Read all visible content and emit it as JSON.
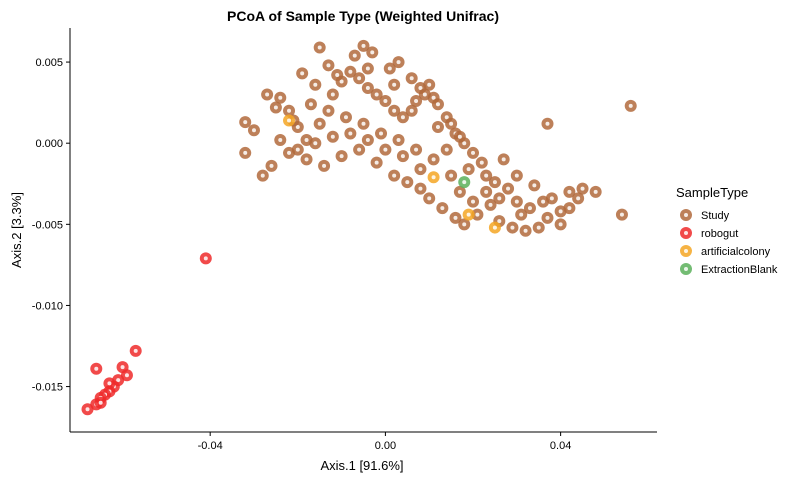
{
  "chart_data": {
    "type": "scatter",
    "title": "PCoA of Sample Type (Weighted Unifrac)",
    "xlabel": "Axis.1   [91.6%]",
    "ylabel": "Axis.2   [3.3%]",
    "xlim": [
      -0.072,
      0.062
    ],
    "ylim": [
      -0.0178,
      0.0071
    ],
    "xticks": [
      -0.04,
      0.0,
      0.04
    ],
    "xtick_labels": [
      "-0.04",
      "0.00",
      "0.04"
    ],
    "yticks": [
      0.005,
      0.0,
      -0.005,
      -0.01,
      -0.015
    ],
    "ytick_labels": [
      "0.005",
      "0.000",
      "-0.005",
      "-0.010",
      "-0.015"
    ],
    "grid": false,
    "legend": {
      "title": "SampleType",
      "placement": "right"
    },
    "series": [
      {
        "name": "Study",
        "color": "#b26a3c",
        "points": [
          [
            -0.015,
            0.0059
          ],
          [
            -0.005,
            0.006
          ],
          [
            0.003,
            0.005
          ],
          [
            0.037,
            0.0012
          ],
          [
            0.056,
            0.0023
          ],
          [
            -0.019,
            0.0043
          ],
          [
            -0.032,
            0.0013
          ],
          [
            -0.03,
            0.0008
          ],
          [
            -0.032,
            -0.0006
          ],
          [
            -0.025,
            0.0022
          ],
          [
            -0.027,
            0.003
          ],
          [
            -0.024,
            0.0028
          ],
          [
            -0.022,
            0.002
          ],
          [
            -0.02,
            0.001
          ],
          [
            -0.018,
            0.0002
          ],
          [
            -0.015,
            0.0012
          ],
          [
            -0.012,
            0.003
          ],
          [
            -0.01,
            0.0038
          ],
          [
            -0.008,
            0.0044
          ],
          [
            -0.006,
            0.004
          ],
          [
            -0.004,
            0.0034
          ],
          [
            -0.002,
            0.003
          ],
          [
            0.0,
            0.0026
          ],
          [
            0.002,
            0.002
          ],
          [
            0.004,
            0.0016
          ],
          [
            0.006,
            0.002
          ],
          [
            0.008,
            0.0034
          ],
          [
            0.01,
            0.0036
          ],
          [
            0.011,
            0.0028
          ],
          [
            0.014,
            0.0016
          ],
          [
            0.016,
            0.0006
          ],
          [
            0.018,
            0.0
          ],
          [
            0.02,
            -0.0006
          ],
          [
            0.022,
            -0.0012
          ],
          [
            0.025,
            -0.0024
          ],
          [
            0.028,
            -0.0028
          ],
          [
            0.03,
            -0.0036
          ],
          [
            0.033,
            -0.004
          ],
          [
            0.035,
            -0.0052
          ],
          [
            0.037,
            -0.0046
          ],
          [
            0.042,
            -0.003
          ],
          [
            0.045,
            -0.0028
          ],
          [
            0.042,
            -0.004
          ],
          [
            0.054,
            -0.0044
          ],
          [
            0.032,
            -0.0054
          ],
          [
            -0.028,
            -0.002
          ],
          [
            -0.026,
            -0.0014
          ],
          [
            -0.022,
            -0.0006
          ],
          [
            -0.018,
            -0.001
          ],
          [
            -0.014,
            -0.0014
          ],
          [
            -0.01,
            -0.0008
          ],
          [
            -0.006,
            -0.0004
          ],
          [
            -0.002,
            -0.0012
          ],
          [
            0.002,
            -0.002
          ],
          [
            0.005,
            -0.0024
          ],
          [
            0.008,
            -0.0028
          ],
          [
            0.01,
            -0.0034
          ],
          [
            0.013,
            -0.004
          ],
          [
            0.016,
            -0.0046
          ],
          [
            0.018,
            -0.005
          ],
          [
            0.021,
            -0.0044
          ],
          [
            0.024,
            -0.0038
          ],
          [
            0.026,
            -0.0048
          ],
          [
            0.029,
            -0.0052
          ],
          [
            0.031,
            -0.0044
          ],
          [
            -0.013,
            0.0048
          ],
          [
            -0.007,
            0.0054
          ],
          [
            -0.003,
            0.0056
          ],
          [
            0.001,
            0.0046
          ],
          [
            0.006,
            0.004
          ],
          [
            0.009,
            0.003
          ],
          [
            0.012,
            0.0024
          ],
          [
            0.015,
            0.0012
          ],
          [
            0.017,
            0.0004
          ],
          [
            0.019,
            -0.0016
          ],
          [
            0.023,
            -0.002
          ],
          [
            0.027,
            -0.001
          ],
          [
            0.03,
            -0.002
          ],
          [
            0.034,
            -0.0026
          ],
          [
            0.038,
            -0.0034
          ],
          [
            -0.024,
            0.0002
          ],
          [
            -0.021,
            0.0014
          ],
          [
            -0.017,
            0.0024
          ],
          [
            -0.013,
            0.002
          ],
          [
            -0.009,
            0.0016
          ],
          [
            -0.005,
            0.0012
          ],
          [
            -0.001,
            0.0006
          ],
          [
            0.003,
            0.0002
          ],
          [
            0.007,
            -0.0004
          ],
          [
            0.011,
            -0.001
          ],
          [
            0.015,
            -0.002
          ],
          [
            0.017,
            -0.003
          ],
          [
            0.02,
            -0.0036
          ],
          [
            0.023,
            -0.003
          ],
          [
            0.026,
            -0.0034
          ],
          [
            -0.016,
            0.0036
          ],
          [
            -0.011,
            0.0042
          ],
          [
            -0.004,
            0.0046
          ],
          [
            0.002,
            0.0036
          ],
          [
            0.007,
            0.0026
          ],
          [
            0.012,
            0.001
          ],
          [
            0.014,
            -0.0004
          ],
          [
            0.008,
            -0.0016
          ],
          [
            0.004,
            -0.0008
          ],
          [
            0.0,
            -0.0004
          ],
          [
            -0.004,
            0.0002
          ],
          [
            -0.008,
            0.0006
          ],
          [
            -0.012,
            0.0004
          ],
          [
            -0.016,
            0.0
          ],
          [
            -0.02,
            -0.0004
          ],
          [
            0.036,
            -0.0036
          ],
          [
            0.04,
            -0.0042
          ],
          [
            0.044,
            -0.0034
          ],
          [
            0.048,
            -0.003
          ],
          [
            0.04,
            -0.005
          ]
        ]
      },
      {
        "name": "robogut",
        "color": "#ee2a2a",
        "points": [
          [
            -0.041,
            -0.0071
          ],
          [
            -0.057,
            -0.0128
          ],
          [
            -0.06,
            -0.0138
          ],
          [
            -0.059,
            -0.0143
          ],
          [
            -0.061,
            -0.0146
          ],
          [
            -0.062,
            -0.015
          ],
          [
            -0.063,
            -0.0153
          ],
          [
            -0.064,
            -0.0155
          ],
          [
            -0.065,
            -0.0157
          ],
          [
            -0.066,
            -0.0161
          ],
          [
            -0.068,
            -0.0164
          ],
          [
            -0.065,
            -0.016
          ],
          [
            -0.063,
            -0.0148
          ],
          [
            -0.066,
            -0.0139
          ]
        ]
      },
      {
        "name": "artificialcolony",
        "color": "#f5a623",
        "points": [
          [
            -0.022,
            0.0014
          ],
          [
            0.011,
            -0.0021
          ],
          [
            0.019,
            -0.0044
          ],
          [
            0.025,
            -0.0052
          ]
        ]
      },
      {
        "name": "ExtractionBlank",
        "color": "#5ab05a",
        "points": [
          [
            0.018,
            -0.0024
          ]
        ]
      }
    ]
  }
}
